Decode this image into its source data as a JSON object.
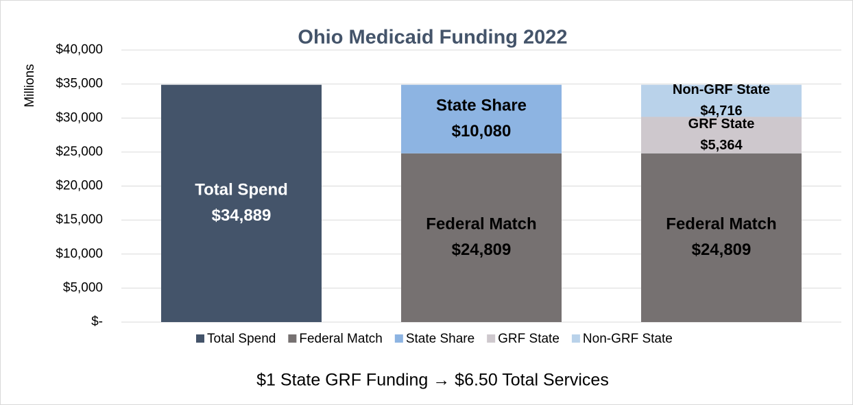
{
  "chart_data": {
    "type": "stacked_bar",
    "title": "Ohio Medicaid Funding 2022",
    "ylabel": "Millions",
    "annotation": "$1 State GRF Funding → $6.50 Total Services",
    "categories": [
      null,
      null,
      null
    ],
    "series": [
      {
        "name": "Total Spend",
        "color": "#44546a",
        "values": [
          34889,
          null,
          null
        ],
        "value_labels": [
          "$34,889",
          null,
          null
        ]
      },
      {
        "name": "Federal Match",
        "color": "#767171",
        "values": [
          null,
          24809,
          24809
        ],
        "value_labels": [
          null,
          "$24,809",
          "$24,809"
        ]
      },
      {
        "name": "State Share",
        "color": "#8db4e2",
        "values": [
          null,
          10080,
          null
        ],
        "value_labels": [
          null,
          "$10,080",
          null
        ]
      },
      {
        "name": "GRF State",
        "color": "#cec8cd",
        "values": [
          null,
          null,
          5364
        ],
        "value_labels": [
          null,
          null,
          "$5,364"
        ]
      },
      {
        "name": "Non-GRF State",
        "color": "#b9d2ea",
        "values": [
          null,
          null,
          4716
        ],
        "value_labels": [
          null,
          null,
          "$4,716"
        ]
      }
    ],
    "ylim": [
      0,
      40000
    ],
    "yticks": [
      {
        "value": 0,
        "label": "$-"
      },
      {
        "value": 5000,
        "label": "$5,000"
      },
      {
        "value": 10000,
        "label": "$10,000"
      },
      {
        "value": 15000,
        "label": "$15,000"
      },
      {
        "value": 20000,
        "label": "$20,000"
      },
      {
        "value": 25000,
        "label": "$25,000"
      },
      {
        "value": 30000,
        "label": "$30,000"
      },
      {
        "value": 35000,
        "label": "$35,000"
      },
      {
        "value": 40000,
        "label": "$40,000"
      }
    ],
    "grid": true,
    "legend": "bottom"
  }
}
